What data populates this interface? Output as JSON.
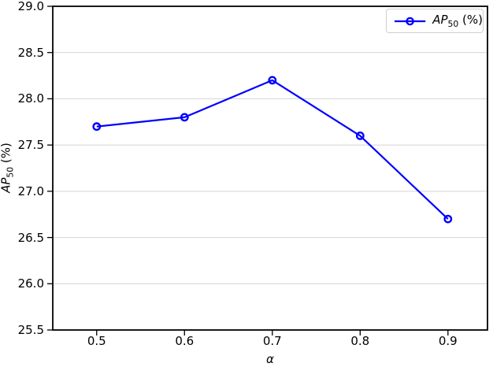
{
  "chart_data": {
    "type": "line",
    "x": [
      0.5,
      0.6,
      0.7,
      0.8,
      0.9
    ],
    "series": [
      {
        "name": "AP50 (%)",
        "values": [
          27.7,
          27.8,
          28.2,
          27.6,
          26.7
        ],
        "color": "#0000ff",
        "marker": "circle"
      }
    ],
    "title": "",
    "xlabel": "α",
    "ylabel": "AP50 (%)",
    "xlim": [
      0.45,
      0.945
    ],
    "ylim": [
      25.5,
      29.0
    ],
    "xticks": {
      "values": [
        0.5,
        0.6,
        0.7,
        0.8,
        0.9
      ],
      "labels": [
        "0.5",
        "0.6",
        "0.7",
        "0.8",
        "0.9"
      ]
    },
    "yticks": {
      "values": [
        25.5,
        26.0,
        26.5,
        27.0,
        27.5,
        28.0,
        28.5,
        29.0
      ],
      "labels": [
        "25.5",
        "26.0",
        "26.5",
        "27.0",
        "27.5",
        "28.0",
        "28.5",
        "29.0"
      ]
    },
    "grid": {
      "horizontal": true,
      "vertical": false,
      "color": "#d4d4d4"
    },
    "legend": {
      "position": "upper right",
      "entries": [
        "AP50 (%)"
      ]
    },
    "colors": {
      "axis": "#000000",
      "background": "#ffffff",
      "line": "#0000ff"
    }
  },
  "labels": {
    "xlabel": "α",
    "ylabel_main": "AP",
    "ylabel_sub": "50",
    "ylabel_rest": " (%)",
    "legend_main": "AP",
    "legend_sub": "50",
    "legend_rest": " (%)"
  }
}
